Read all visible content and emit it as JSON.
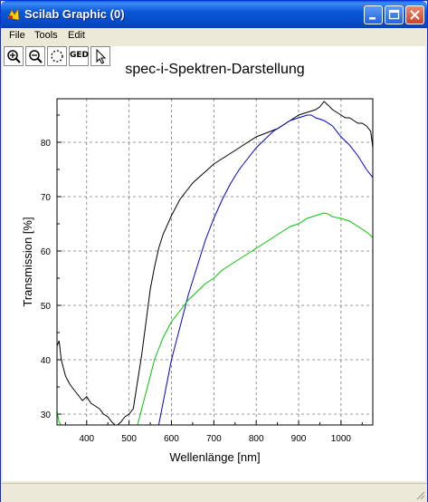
{
  "window": {
    "title": "Scilab Graphic (0)"
  },
  "menu": [
    "File",
    "Tools",
    "Edit"
  ],
  "toolbar": {
    "ged_label": "GED"
  },
  "colors": {
    "black": "#000000",
    "blue": "#0000cc",
    "green": "#00c800"
  },
  "chart_data": {
    "type": "line",
    "title": "spec-i-Spektren-Darstellung",
    "xlabel": "Wellenlänge [nm]",
    "ylabel": "Transmission [%]",
    "xlim": [
      330,
      1075
    ],
    "ylim": [
      28,
      88
    ],
    "xticks": [
      400,
      500,
      600,
      700,
      800,
      900,
      1000
    ],
    "yticks": [
      30,
      40,
      50,
      60,
      70,
      80
    ],
    "grid": true,
    "series": [
      {
        "color": "black",
        "x": [
          330,
          335,
          340,
          350,
          360,
          370,
          380,
          390,
          400,
          410,
          420,
          430,
          440,
          450,
          460,
          470,
          480,
          490,
          500,
          510,
          520,
          530,
          540,
          550,
          560,
          570,
          580,
          600,
          620,
          650,
          700,
          750,
          800,
          850,
          880,
          900,
          920,
          940,
          950,
          960,
          970,
          980,
          990,
          1000,
          1010,
          1020,
          1030,
          1040,
          1050,
          1060,
          1070,
          1075
        ],
        "y": [
          42.5,
          43.5,
          40,
          37,
          35.5,
          34.5,
          33.5,
          32.5,
          33.2,
          32,
          31.5,
          31,
          30,
          29.5,
          28.5,
          27.8,
          28.5,
          29.5,
          30,
          31,
          36,
          41,
          47,
          53,
          57,
          60.5,
          63,
          66.5,
          69.5,
          72.5,
          76,
          78.5,
          81,
          82.5,
          84,
          85,
          85.5,
          86,
          86.5,
          87.5,
          86.8,
          86,
          85.5,
          85,
          84.5,
          84.5,
          84,
          83.5,
          83.5,
          83,
          82,
          79
        ]
      },
      {
        "color": "blue",
        "x": [
          570,
          580,
          590,
          600,
          620,
          640,
          660,
          680,
          700,
          720,
          740,
          760,
          780,
          800,
          820,
          840,
          860,
          880,
          900,
          920,
          930,
          940,
          960,
          980,
          1000,
          1020,
          1040,
          1060,
          1075
        ],
        "y": [
          28,
          32,
          36,
          40,
          46,
          52,
          57,
          62,
          66,
          69.5,
          72.5,
          75,
          77,
          79,
          80.5,
          82,
          83,
          84,
          84.5,
          85,
          85,
          84.5,
          84,
          83,
          81,
          79.5,
          77.5,
          75,
          73.5
        ]
      },
      {
        "color": "green",
        "x": [
          330,
          335,
          340,
          520,
          530,
          540,
          550,
          560,
          570,
          580,
          590,
          600,
          620,
          640,
          660,
          680,
          700,
          720,
          740,
          760,
          780,
          800,
          820,
          840,
          860,
          880,
          900,
          920,
          940,
          960,
          970,
          980,
          1000,
          1020,
          1040,
          1060,
          1075
        ],
        "y": [
          30.5,
          28.5,
          28,
          28,
          31,
          34,
          37,
          40,
          42,
          44,
          45.5,
          47,
          49,
          51,
          52.5,
          54,
          55,
          56.5,
          57.5,
          58.5,
          59.5,
          60.5,
          61.5,
          62.5,
          63.5,
          64.5,
          65,
          66,
          66.5,
          67,
          66.8,
          66.3,
          66,
          65.5,
          64.5,
          63.5,
          62.5
        ]
      }
    ]
  }
}
